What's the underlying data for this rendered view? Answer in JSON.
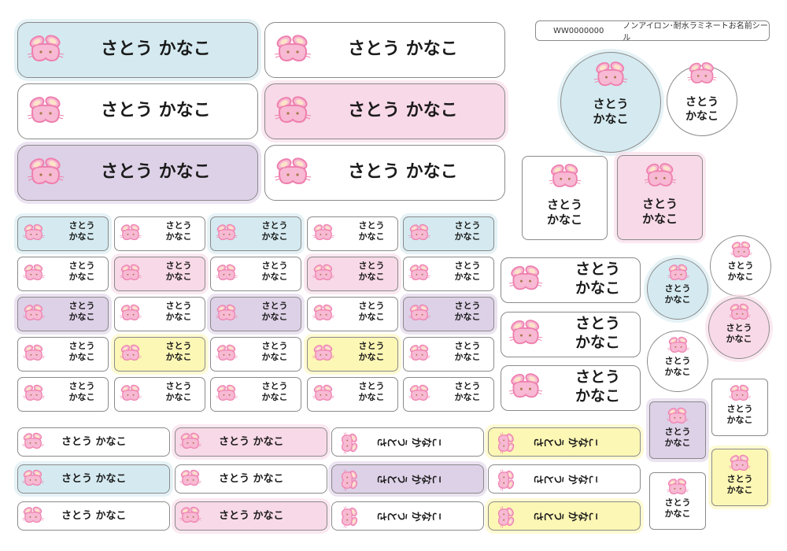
{
  "header": {
    "code": "WW0000000",
    "product": "ノンアイロン･耐水ラミネートお名前シール"
  },
  "name": {
    "full": "さとう かなこ",
    "line1": "さとう",
    "line2": "かなこ"
  },
  "icon": "bunny-face-icon",
  "colors": {
    "blue": "#d4eaf0",
    "pink": "#f8d9e7",
    "purple": "#ddd1e7",
    "yellow": "#fdf7b5",
    "white": "#ffffff",
    "bunny": "#f7b9d3",
    "bunny_outline": "#ee7fae"
  }
}
